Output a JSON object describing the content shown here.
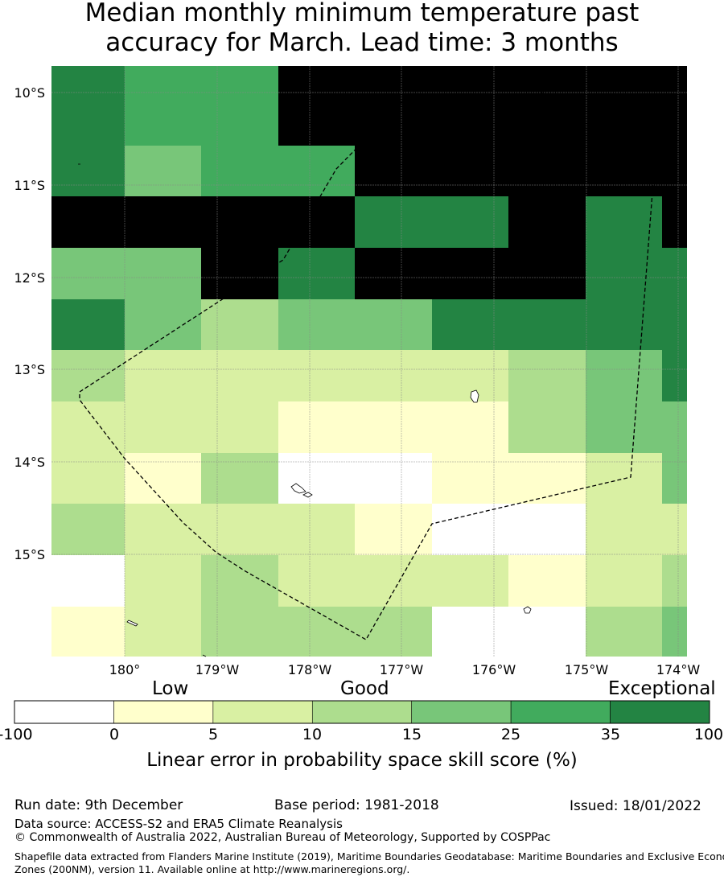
{
  "title": {
    "line1": "Median monthly minimum temperature past",
    "line2": "accuracy for March. Lead time: 3 months"
  },
  "map": {
    "lat_labels": [
      "10°S",
      "11°S",
      "12°S",
      "13°S",
      "14°S",
      "15°S"
    ],
    "lon_labels": [
      "180°",
      "179°W",
      "178°W",
      "177°W",
      "176°W",
      "175°W",
      "174°W"
    ],
    "grid_rows": [
      [
        6,
        5,
        5,
        7,
        7,
        7,
        7,
        7,
        7
      ],
      [
        6,
        4,
        5,
        5,
        7,
        7,
        7,
        7,
        7
      ],
      [
        7,
        7,
        7,
        7,
        6,
        6,
        7,
        6,
        7
      ],
      [
        4,
        4,
        7,
        6,
        7,
        7,
        7,
        6,
        6
      ],
      [
        6,
        4,
        3,
        4,
        4,
        6,
        6,
        6,
        6
      ],
      [
        3,
        2,
        2,
        2,
        2,
        2,
        3,
        4,
        6
      ],
      [
        2,
        2,
        2,
        1,
        1,
        1,
        3,
        4,
        4
      ],
      [
        2,
        1,
        3,
        0,
        0,
        1,
        1,
        2,
        4
      ],
      [
        3,
        2,
        2,
        2,
        1,
        0,
        0,
        2,
        2
      ],
      [
        0,
        2,
        3,
        2,
        2,
        2,
        1,
        2,
        3
      ],
      [
        1,
        2,
        3,
        3,
        3,
        0,
        0,
        3,
        4
      ]
    ]
  },
  "legend": {
    "category_labels": [
      "Low",
      "Good",
      "Exceptional"
    ],
    "tick_labels": [
      "-100",
      "0",
      "5",
      "10",
      "15",
      "25",
      "35",
      "100"
    ],
    "colors": [
      "#ffffff",
      "#ffffcc",
      "#d9f0a3",
      "#addd8e",
      "#78c679",
      "#41ab5d",
      "#238443"
    ],
    "title": "Linear error in probability space skill score (%)"
  },
  "footer": {
    "run_date": "Run date: 9th December",
    "base_period": "Base period: 1981-2018",
    "issued": "Issued: 18/01/2022",
    "data_source": "Data source: ACCESS-S2 and ERA5 Climate Reanalysis",
    "copyright": "© Commonwealth of Australia 2022, Australian Bureau of Meteorology, Supported by COSPPac",
    "shapefile_line1": "Shapefile data extracted from Flanders Marine Institute (2019), Maritime Boundaries Geodatabase: Maritime Boundaries and Exclusive Economic",
    "shapefile_line2": "Zones (200NM), version 11. Available online at http://www.marineregions.org/."
  }
}
